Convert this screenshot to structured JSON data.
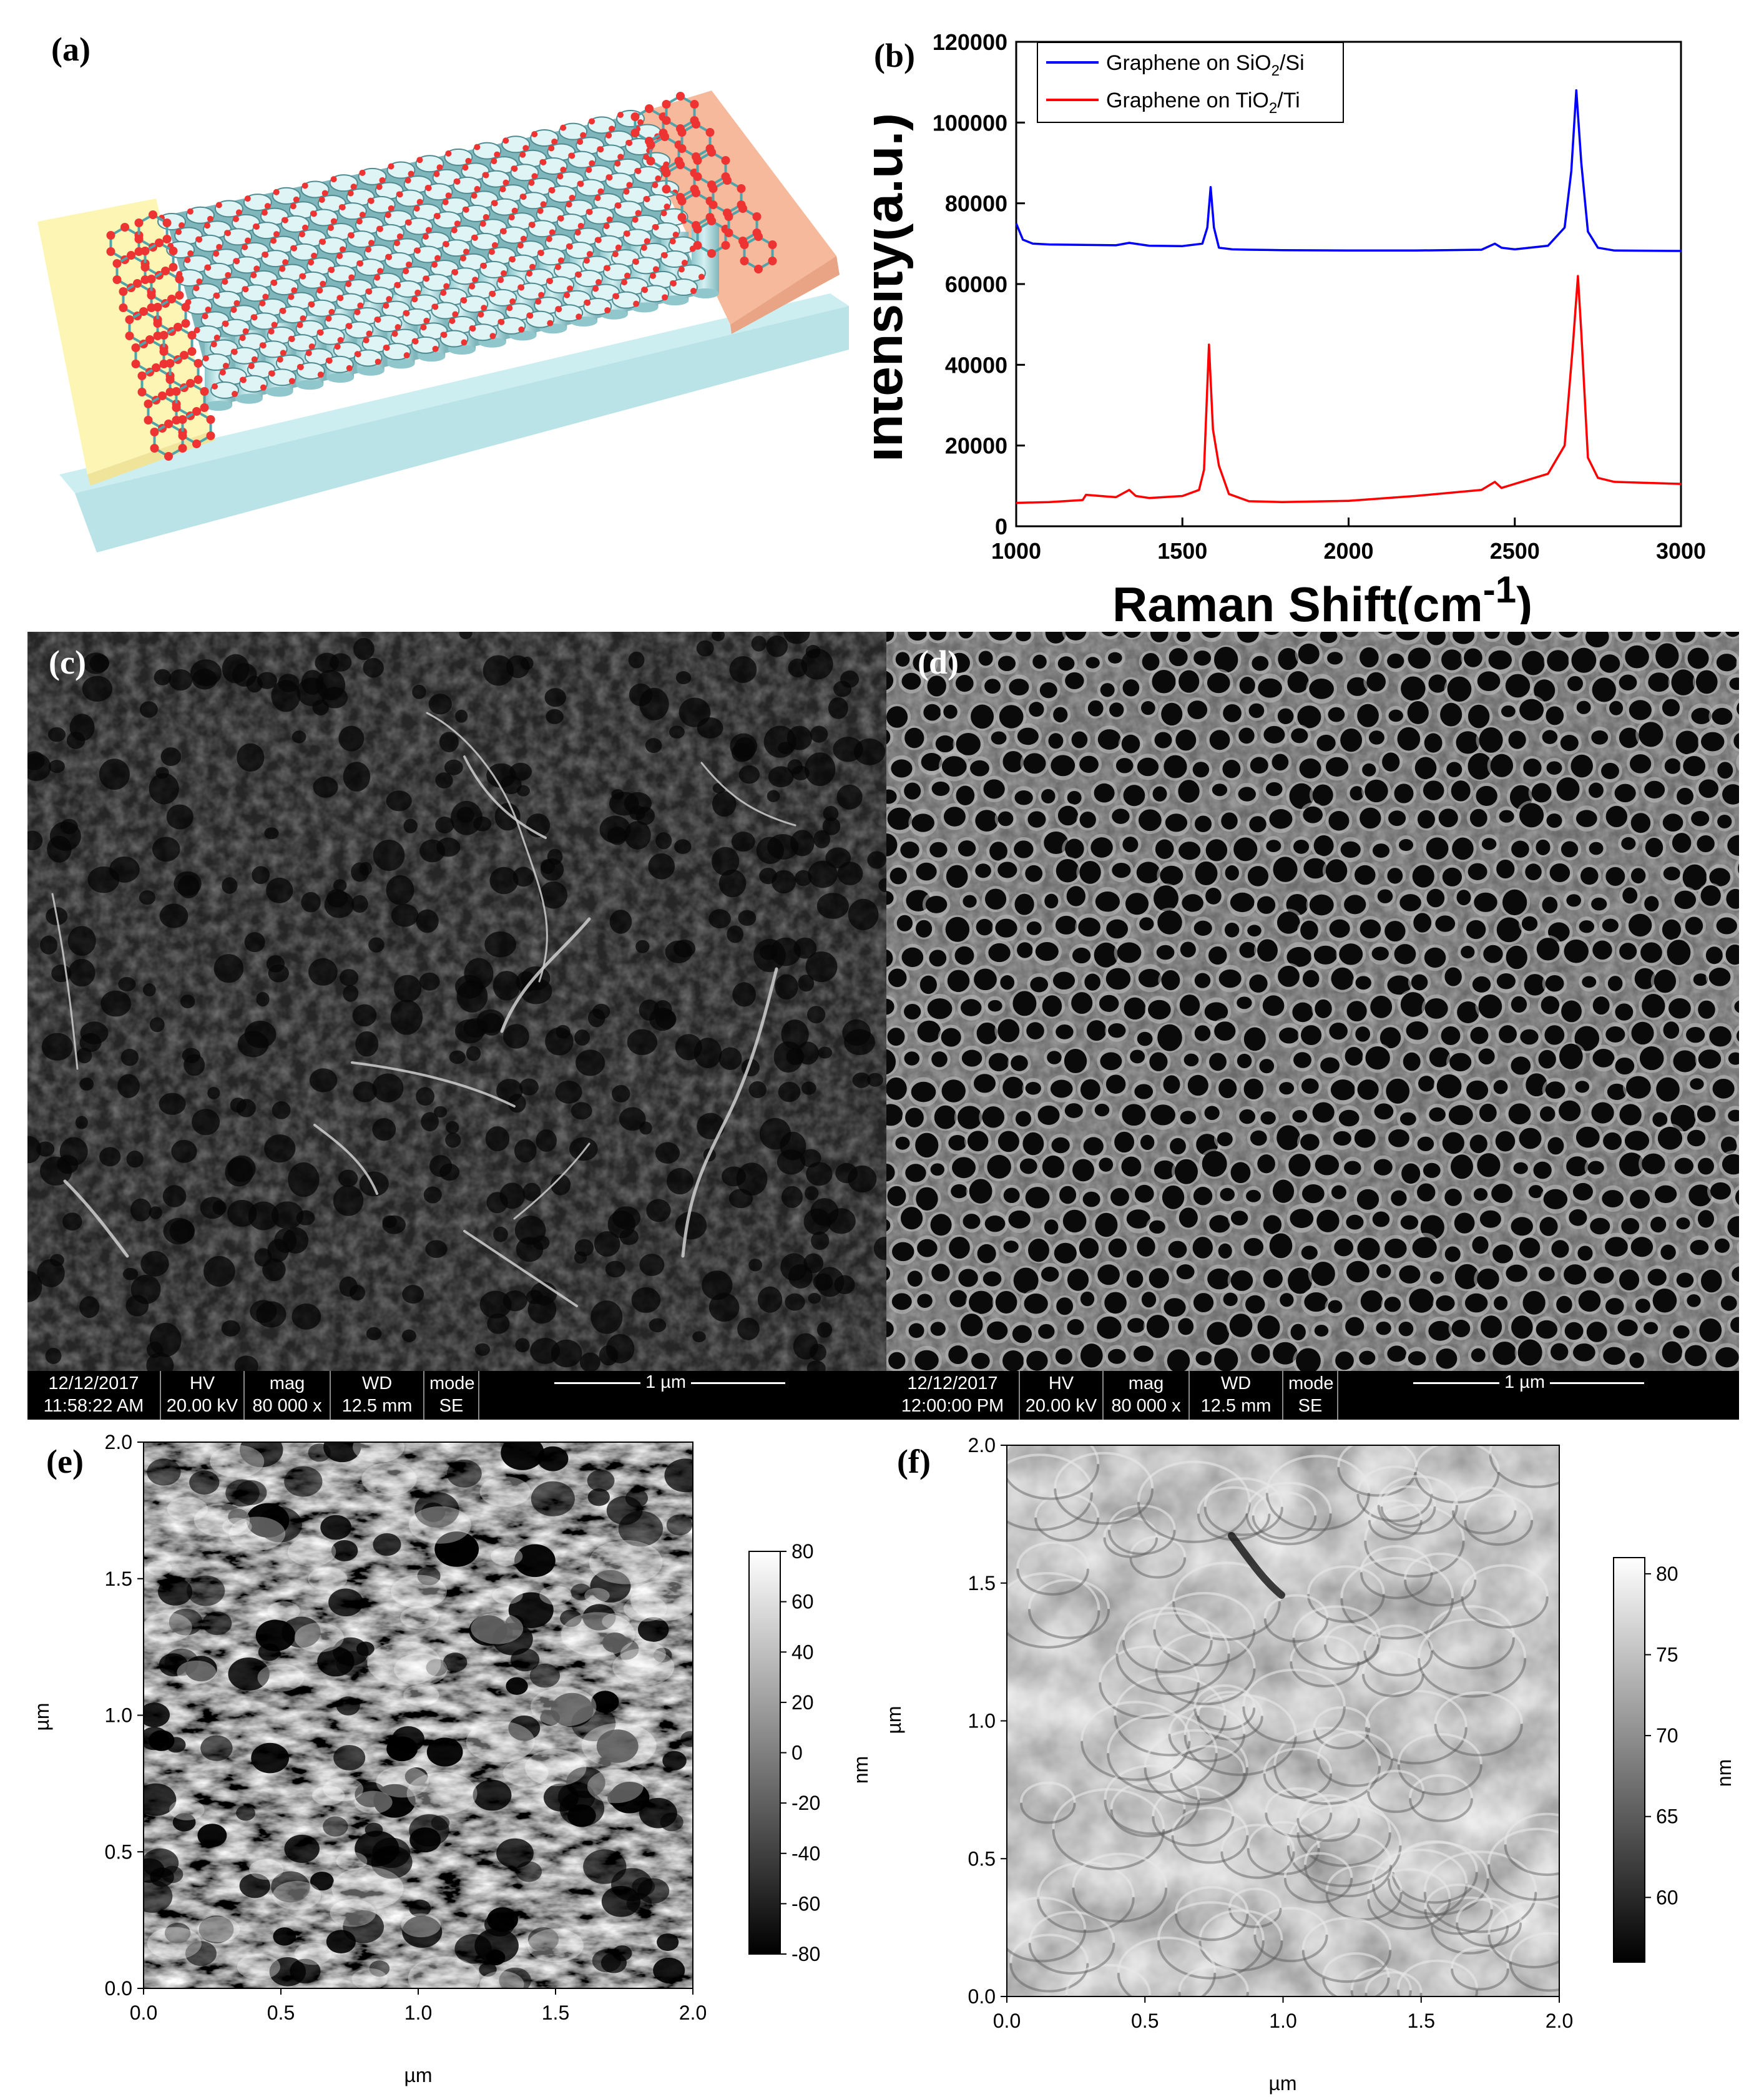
{
  "panels": {
    "a": {
      "label": "(a)"
    },
    "b": {
      "label": "(b)"
    },
    "c": {
      "label": "(c)"
    },
    "d": {
      "label": "(d)"
    },
    "e": {
      "label": "(e)"
    },
    "f": {
      "label": "(f)"
    }
  },
  "chart_data": [
    {
      "type": "line",
      "panel": "b",
      "title": "",
      "xlabel": "Raman Shift(cm",
      "xlabel_sup": "-1",
      "xlabel_end": ")",
      "ylabel": "Intensity(a.u.)",
      "xlim": [
        1000,
        3000
      ],
      "ylim": [
        0,
        120000
      ],
      "x_ticks": [
        "1000",
        "1500",
        "2000",
        "2500",
        "3000"
      ],
      "y_ticks": [
        "0",
        "20000",
        "40000",
        "60000",
        "80000",
        "100000",
        "120000"
      ],
      "legend_position": "top-left",
      "series": [
        {
          "name": "Graphene on SiO",
          "name_sub": "2",
          "name_end": "/Si",
          "color": "#0000ff",
          "x": [
            1000,
            1020,
            1050,
            1100,
            1200,
            1300,
            1340,
            1400,
            1500,
            1560,
            1575,
            1585,
            1595,
            1610,
            1650,
            1700,
            1800,
            2000,
            2200,
            2400,
            2440,
            2460,
            2500,
            2600,
            2650,
            2670,
            2685,
            2700,
            2720,
            2750,
            2800,
            3000
          ],
          "y": [
            75000,
            71000,
            70000,
            69800,
            69700,
            69600,
            70200,
            69500,
            69400,
            70000,
            74000,
            84000,
            74000,
            69000,
            68600,
            68500,
            68400,
            68300,
            68300,
            68500,
            70000,
            69000,
            68600,
            69500,
            74000,
            88000,
            108000,
            90000,
            73000,
            69000,
            68300,
            68200
          ]
        },
        {
          "name": "Graphene on TiO",
          "name_sub": "2",
          "name_end": "/Ti",
          "color": "#ff0000",
          "x": [
            1000,
            1100,
            1200,
            1210,
            1300,
            1340,
            1360,
            1400,
            1500,
            1550,
            1565,
            1580,
            1592,
            1610,
            1640,
            1700,
            1800,
            2000,
            2200,
            2400,
            2440,
            2460,
            2500,
            2600,
            2650,
            2675,
            2690,
            2700,
            2720,
            2750,
            2800,
            3000
          ],
          "y": [
            5800,
            6000,
            6500,
            7800,
            7200,
            9000,
            7500,
            7000,
            7500,
            9000,
            14000,
            45000,
            24000,
            15000,
            8000,
            6200,
            6000,
            6300,
            7500,
            9000,
            11000,
            9500,
            10500,
            13000,
            20000,
            45000,
            62000,
            48000,
            17000,
            12000,
            11000,
            10500
          ]
        }
      ]
    },
    {
      "type": "heatmap",
      "panel": "e",
      "xlabel": "µm",
      "ylabel": "µm",
      "xlim": [
        0,
        2
      ],
      "ylim": [
        0,
        2
      ],
      "x_ticks": [
        "0.0",
        "0.5",
        "1.0",
        "1.5",
        "2.0"
      ],
      "y_ticks": [
        "0.0",
        "0.5",
        "1.0",
        "1.5",
        "2.0"
      ],
      "colorbar": {
        "label": "nm",
        "ticks": [
          "80",
          "60",
          "40",
          "20",
          "0",
          "-20",
          "-40",
          "-60",
          "-80"
        ],
        "range": [
          -80,
          80
        ]
      }
    },
    {
      "type": "heatmap",
      "panel": "f",
      "xlabel": "µm",
      "ylabel": "µm",
      "xlim": [
        0,
        2
      ],
      "ylim": [
        0,
        2
      ],
      "x_ticks": [
        "0.0",
        "0.5",
        "1.0",
        "1.5",
        "2.0"
      ],
      "y_ticks": [
        "0.0",
        "0.5",
        "1.0",
        "1.5",
        "2.0"
      ],
      "colorbar": {
        "label": "nm",
        "ticks": [
          "80",
          "75",
          "70",
          "65",
          "60"
        ],
        "range": [
          56,
          81
        ]
      }
    }
  ],
  "sem": {
    "c": {
      "date": "12/12/2017",
      "time": "11:58:22 AM",
      "hv_label": "HV",
      "hv": "20.00 kV",
      "mag_label": "mag",
      "mag": "80 000 x",
      "wd_label": "WD",
      "wd": "12.5 mm",
      "mode_label": "mode",
      "mode": "SE",
      "scale": "1 µm"
    },
    "d": {
      "date": "12/12/2017",
      "time": "12:00:00 PM",
      "hv_label": "HV",
      "hv": "20.00 kV",
      "mag_label": "mag",
      "mag": "80 000 x",
      "wd_label": "WD",
      "wd": "12.5 mm",
      "mode_label": "mode",
      "mode": "SE",
      "scale": "1 µm"
    }
  }
}
